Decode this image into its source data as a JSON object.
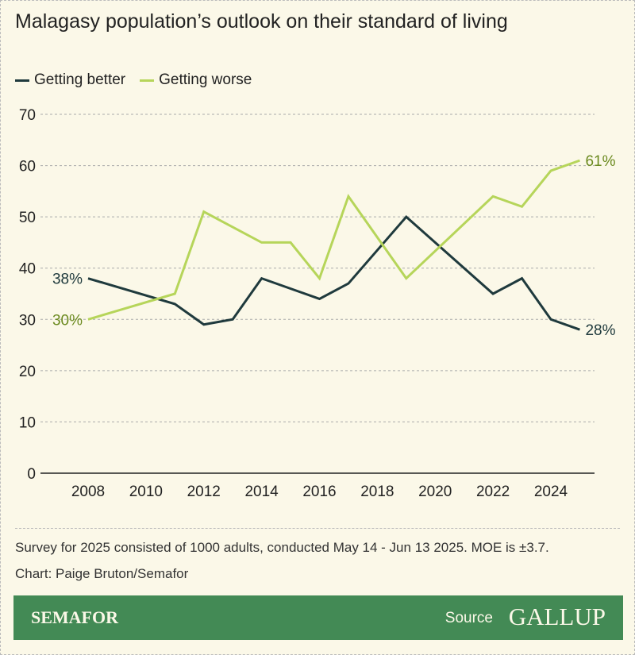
{
  "title": "Malagasy population’s outlook on their standard of living",
  "note": "Survey for 2025 consisted of 1000 adults, conducted May 14 - Jun 13 2025. MOE is ±3.7.",
  "credit": "Chart: Paige Bruton/Semafor",
  "footer": {
    "brand": "SEMAFOR",
    "source_label": "Source",
    "source_logo": "GALLUP"
  },
  "colors": {
    "better": "#1f3a3d",
    "worse": "#b6d55a",
    "worse_label": "#6b8a1f",
    "footer": "#438a55",
    "background": "#fbf8e8"
  },
  "chart_data": {
    "type": "line",
    "title": "Malagasy population’s outlook on their standard of living",
    "xlim": [
      2008,
      2025
    ],
    "ylim": [
      0,
      70
    ],
    "yticks": [
      0,
      10,
      20,
      30,
      40,
      50,
      60,
      70
    ],
    "xticks": [
      2008,
      2010,
      2012,
      2014,
      2016,
      2018,
      2020,
      2022,
      2024
    ],
    "grid": true,
    "legend": "top-left",
    "series": [
      {
        "name": "Getting better",
        "color": "#1f3a3d",
        "x": [
          2008,
          2011,
          2012,
          2013,
          2014,
          2016,
          2017,
          2019,
          2022,
          2023,
          2024,
          2025
        ],
        "y": [
          38,
          33,
          29,
          30,
          38,
          34,
          37,
          50,
          35,
          38,
          30,
          28
        ],
        "start_label": "38%",
        "end_label": "28%"
      },
      {
        "name": "Getting worse",
        "color": "#b6d55a",
        "x": [
          2008,
          2011,
          2012,
          2014,
          2015,
          2016,
          2017,
          2019,
          2022,
          2023,
          2024,
          2025
        ],
        "y": [
          30,
          35,
          51,
          45,
          45,
          38,
          54,
          38,
          54,
          52,
          59,
          61
        ],
        "start_label": "30%",
        "end_label": "61%"
      }
    ]
  }
}
